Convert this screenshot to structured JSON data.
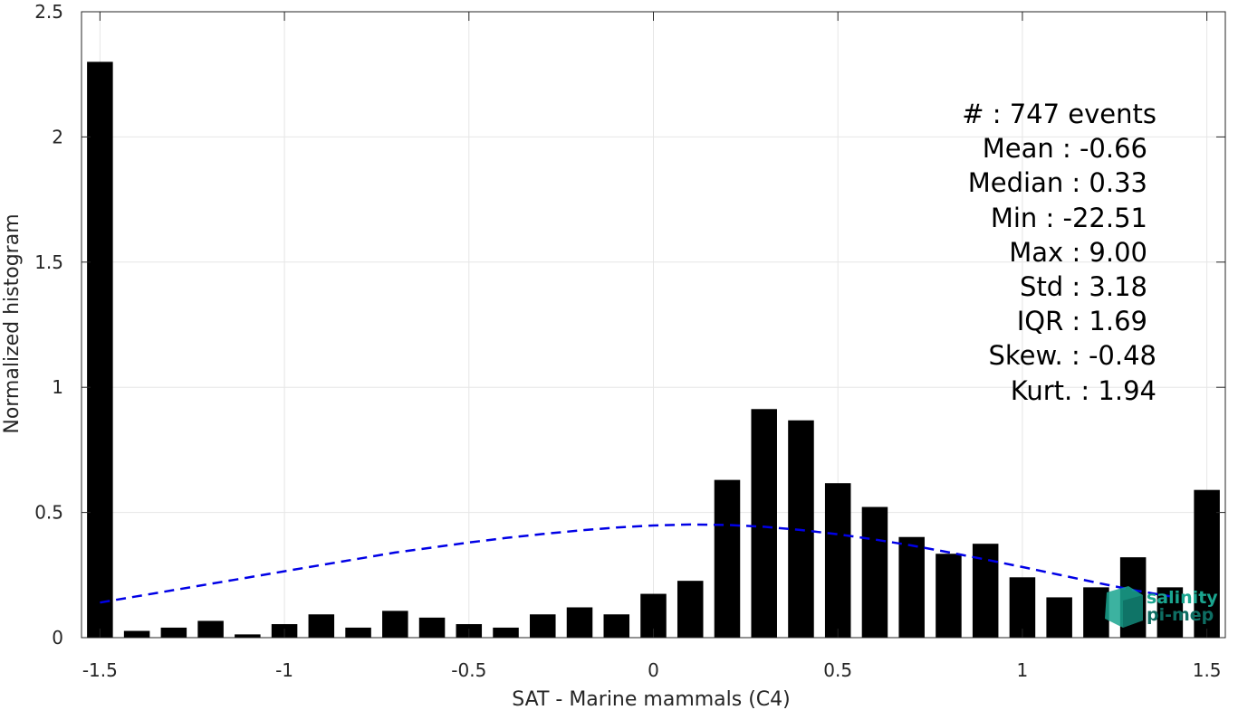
{
  "chart_data": {
    "type": "bar",
    "xlabel": "SAT - Marine mammals (C4)",
    "ylabel": "Normalized histogram",
    "xlim": [
      -1.55,
      1.55
    ],
    "ylim": [
      0,
      2.5
    ],
    "x_ticks": [
      -1.5,
      -1,
      -0.5,
      0,
      0.5,
      1,
      1.5
    ],
    "x_tick_labels": [
      "-1.5",
      "-1",
      "-0.5",
      "0",
      "0.5",
      "1",
      "1.5"
    ],
    "y_ticks": [
      0,
      0.5,
      1,
      1.5,
      2,
      2.5
    ],
    "y_tick_labels": [
      "0",
      "0.5",
      "1",
      "1.5",
      "2",
      "2.5"
    ],
    "grid": true,
    "bar_color": "#000000",
    "bars": {
      "x": [
        -1.5,
        -1.4,
        -1.3,
        -1.2,
        -1.1,
        -1.0,
        -0.9,
        -0.8,
        -0.7,
        -0.6,
        -0.5,
        -0.4,
        -0.3,
        -0.2,
        -0.1,
        0.0,
        0.1,
        0.2,
        0.3,
        0.4,
        0.5,
        0.6,
        0.7,
        0.8,
        0.9,
        1.0,
        1.1,
        1.2,
        1.3,
        1.4,
        1.5
      ],
      "values": [
        2.3,
        0.027,
        0.04,
        0.067,
        0.013,
        0.054,
        0.093,
        0.04,
        0.107,
        0.08,
        0.054,
        0.04,
        0.093,
        0.121,
        0.093,
        0.175,
        0.227,
        0.63,
        0.913,
        0.868,
        0.617,
        0.522,
        0.402,
        0.335,
        0.375,
        0.241,
        0.161,
        0.201,
        0.321,
        0.201,
        0.59
      ]
    },
    "fit_curve": {
      "style": "dashed",
      "color": "#0000e6",
      "x": [
        -1.5,
        -1.4,
        -1.3,
        -1.2,
        -1.1,
        -1.0,
        -0.9,
        -0.8,
        -0.7,
        -0.6,
        -0.5,
        -0.4,
        -0.3,
        -0.2,
        -0.1,
        0.0,
        0.1,
        0.2,
        0.3,
        0.4,
        0.5,
        0.6,
        0.7,
        0.8,
        0.9,
        1.0,
        1.1,
        1.2,
        1.3,
        1.4
      ],
      "y": [
        0.14,
        0.165,
        0.19,
        0.215,
        0.24,
        0.265,
        0.29,
        0.315,
        0.34,
        0.36,
        0.38,
        0.398,
        0.414,
        0.428,
        0.44,
        0.448,
        0.452,
        0.45,
        0.443,
        0.43,
        0.413,
        0.392,
        0.368,
        0.341,
        0.312,
        0.282,
        0.251,
        0.22,
        0.19,
        0.165
      ]
    }
  },
  "stats": [
    "#  : 747 events",
    "Mean : -0.66",
    "Median : 0.33",
    "Min : -22.51",
    "Max : 9.00",
    "Std : 3.18",
    "IQR : 1.69",
    "Skew. : -0.48",
    "Kurt. : 1.94"
  ],
  "logo": {
    "line1": "salinity",
    "line2": "pi-mep",
    "color_primary": "#1aa58f",
    "color_dark": "#0e6e63"
  }
}
